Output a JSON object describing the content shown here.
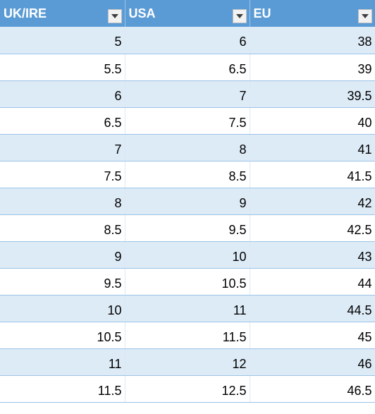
{
  "header": {
    "columns": [
      "UK/IRE",
      "USA",
      "EU"
    ],
    "filter_icon": "dropdown-arrow-icon",
    "header_color": "#5b9bd5",
    "band_color": "#ddebf7"
  },
  "rows": [
    [
      "5",
      "6",
      "38"
    ],
    [
      "5.5",
      "6.5",
      "39"
    ],
    [
      "6",
      "7",
      "39.5"
    ],
    [
      "6.5",
      "7.5",
      "40"
    ],
    [
      "7",
      "8",
      "41"
    ],
    [
      "7.5",
      "8.5",
      "41.5"
    ],
    [
      "8",
      "9",
      "42"
    ],
    [
      "8.5",
      "9.5",
      "42.5"
    ],
    [
      "9",
      "10",
      "43"
    ],
    [
      "9.5",
      "10.5",
      "44"
    ],
    [
      "10",
      "11",
      "44.5"
    ],
    [
      "10.5",
      "11.5",
      "45"
    ],
    [
      "11",
      "12",
      "46"
    ],
    [
      "11.5",
      "12.5",
      "46.5"
    ]
  ]
}
